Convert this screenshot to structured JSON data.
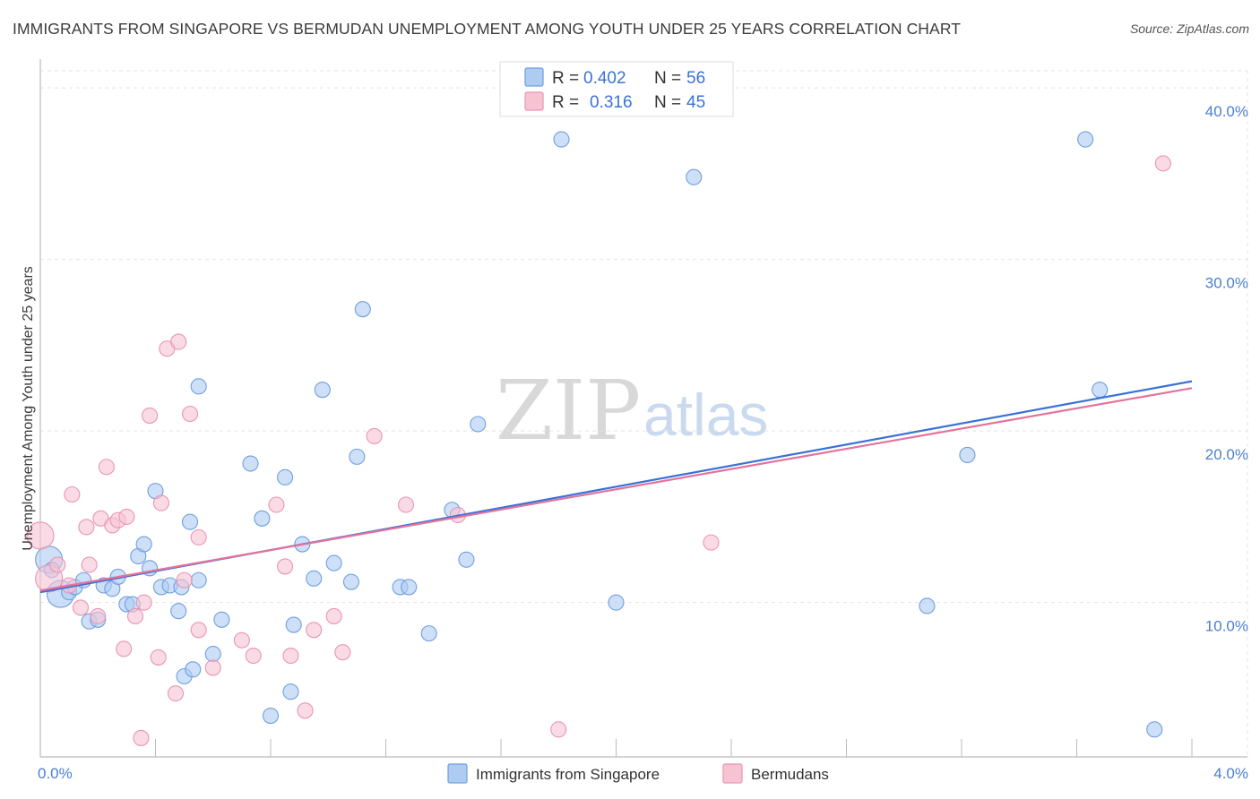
{
  "title": "IMMIGRANTS FROM SINGAPORE VS BERMUDAN UNEMPLOYMENT AMONG YOUTH UNDER 25 YEARS CORRELATION CHART",
  "source": "Source: ZipAtlas.com",
  "watermark": {
    "part1": "ZIP",
    "part2": "atlas"
  },
  "colors": {
    "blue_fill": "#aecbf2",
    "blue_stroke": "#6f9fe0",
    "blue_line": "#3a72d6",
    "pink_fill": "#f7c3d3",
    "pink_stroke": "#e995b3",
    "pink_line": "#e3739c",
    "grid": "#e3e3e3",
    "axis_text": "#4a7fd0"
  },
  "legend": {
    "rows": [
      {
        "r_label": "R =",
        "r_value": "0.402",
        "n_label": "N =",
        "n_value": "56"
      },
      {
        "r_label": "R =",
        "r_value": "0.316",
        "n_label": "N =",
        "n_value": "45"
      }
    ]
  },
  "chart_data": {
    "type": "scatter",
    "title": "IMMIGRANTS FROM SINGAPORE VS BERMUDAN UNEMPLOYMENT AMONG YOUTH UNDER 25 YEARS CORRELATION CHART",
    "xlabel": "",
    "ylabel": "Unemployment Among Youth under 25 years",
    "xlim": [
      0,
      4.0
    ],
    "ylim": [
      1.0,
      41.0
    ],
    "x_tick_labels": {
      "min": "0.0%",
      "max": "4.0%"
    },
    "y_ticks": [
      10,
      20,
      30,
      40
    ],
    "y_tick_labels": [
      "10.0%",
      "20.0%",
      "30.0%",
      "40.0%"
    ],
    "grid": true,
    "series": [
      {
        "name": "Immigrants from Singapore",
        "color": "blue",
        "trend": {
          "x": [
            0.0,
            4.0
          ],
          "y": [
            10.6,
            22.9
          ]
        },
        "points": [
          {
            "x": 0.03,
            "y": 12.5,
            "big": true
          },
          {
            "x": 0.04,
            "y": 11.9
          },
          {
            "x": 0.07,
            "y": 10.5,
            "big": true
          },
          {
            "x": 0.1,
            "y": 10.6
          },
          {
            "x": 0.12,
            "y": 10.9
          },
          {
            "x": 0.15,
            "y": 11.3
          },
          {
            "x": 0.17,
            "y": 8.9
          },
          {
            "x": 0.2,
            "y": 9.0
          },
          {
            "x": 0.22,
            "y": 11.0
          },
          {
            "x": 0.25,
            "y": 10.8
          },
          {
            "x": 0.27,
            "y": 11.5
          },
          {
            "x": 0.3,
            "y": 9.9
          },
          {
            "x": 0.32,
            "y": 9.9
          },
          {
            "x": 0.34,
            "y": 12.7
          },
          {
            "x": 0.36,
            "y": 13.4
          },
          {
            "x": 0.38,
            "y": 12.0
          },
          {
            "x": 0.4,
            "y": 16.5
          },
          {
            "x": 0.42,
            "y": 10.9
          },
          {
            "x": 0.45,
            "y": 11.0
          },
          {
            "x": 0.48,
            "y": 9.5
          },
          {
            "x": 0.49,
            "y": 10.9
          },
          {
            "x": 0.52,
            "y": 14.7
          },
          {
            "x": 0.5,
            "y": 5.7
          },
          {
            "x": 0.53,
            "y": 6.1
          },
          {
            "x": 0.55,
            "y": 11.3
          },
          {
            "x": 0.6,
            "y": 7.0
          },
          {
            "x": 0.63,
            "y": 9.0
          },
          {
            "x": 0.55,
            "y": 22.6
          },
          {
            "x": 0.73,
            "y": 18.1
          },
          {
            "x": 0.77,
            "y": 14.9
          },
          {
            "x": 0.8,
            "y": 3.4
          },
          {
            "x": 0.85,
            "y": 17.3
          },
          {
            "x": 0.87,
            "y": 4.8
          },
          {
            "x": 0.88,
            "y": 8.7
          },
          {
            "x": 0.91,
            "y": 13.4
          },
          {
            "x": 0.95,
            "y": 11.4
          },
          {
            "x": 0.98,
            "y": 22.4
          },
          {
            "x": 1.02,
            "y": 12.3
          },
          {
            "x": 1.08,
            "y": 11.2
          },
          {
            "x": 1.1,
            "y": 18.5
          },
          {
            "x": 1.12,
            "y": 27.1
          },
          {
            "x": 1.25,
            "y": 10.9
          },
          {
            "x": 1.28,
            "y": 10.9
          },
          {
            "x": 1.35,
            "y": 8.2
          },
          {
            "x": 1.43,
            "y": 15.4
          },
          {
            "x": 1.48,
            "y": 12.5
          },
          {
            "x": 1.52,
            "y": 20.4
          },
          {
            "x": 1.81,
            "y": 37.0
          },
          {
            "x": 2.0,
            "y": 10.0
          },
          {
            "x": 2.27,
            "y": 34.8
          },
          {
            "x": 3.08,
            "y": 9.8
          },
          {
            "x": 3.22,
            "y": 18.6
          },
          {
            "x": 3.63,
            "y": 37.0
          },
          {
            "x": 3.68,
            "y": 22.4
          },
          {
            "x": 3.87,
            "y": 2.6
          }
        ]
      },
      {
        "name": "Bermudans",
        "color": "pink",
        "trend": {
          "x": [
            0.0,
            4.0
          ],
          "y": [
            10.7,
            22.5
          ]
        },
        "points": [
          {
            "x": 0.0,
            "y": 13.9,
            "big": true
          },
          {
            "x": 0.03,
            "y": 11.4,
            "big": true
          },
          {
            "x": 0.06,
            "y": 12.2
          },
          {
            "x": 0.1,
            "y": 11.0
          },
          {
            "x": 0.11,
            "y": 16.3
          },
          {
            "x": 0.14,
            "y": 9.7
          },
          {
            "x": 0.16,
            "y": 14.4
          },
          {
            "x": 0.17,
            "y": 12.2
          },
          {
            "x": 0.2,
            "y": 9.2
          },
          {
            "x": 0.21,
            "y": 14.9
          },
          {
            "x": 0.23,
            "y": 17.9
          },
          {
            "x": 0.25,
            "y": 14.5
          },
          {
            "x": 0.27,
            "y": 14.8
          },
          {
            "x": 0.29,
            "y": 7.3
          },
          {
            "x": 0.3,
            "y": 15.0
          },
          {
            "x": 0.33,
            "y": 9.2
          },
          {
            "x": 0.35,
            "y": 2.1
          },
          {
            "x": 0.36,
            "y": 10.0
          },
          {
            "x": 0.38,
            "y": 20.9
          },
          {
            "x": 0.41,
            "y": 6.8
          },
          {
            "x": 0.42,
            "y": 15.8
          },
          {
            "x": 0.44,
            "y": 24.8
          },
          {
            "x": 0.47,
            "y": 4.7
          },
          {
            "x": 0.48,
            "y": 25.2
          },
          {
            "x": 0.5,
            "y": 11.3
          },
          {
            "x": 0.52,
            "y": 21.0
          },
          {
            "x": 0.55,
            "y": 13.8
          },
          {
            "x": 0.55,
            "y": 8.4
          },
          {
            "x": 0.6,
            "y": 6.2
          },
          {
            "x": 0.7,
            "y": 7.8
          },
          {
            "x": 0.74,
            "y": 6.9
          },
          {
            "x": 0.82,
            "y": 15.7
          },
          {
            "x": 0.85,
            "y": 12.1
          },
          {
            "x": 0.87,
            "y": 6.9
          },
          {
            "x": 0.92,
            "y": 3.7
          },
          {
            "x": 0.95,
            "y": 8.4
          },
          {
            "x": 1.02,
            "y": 9.2
          },
          {
            "x": 1.05,
            "y": 7.1
          },
          {
            "x": 1.16,
            "y": 19.7
          },
          {
            "x": 1.27,
            "y": 15.7
          },
          {
            "x": 1.45,
            "y": 15.1
          },
          {
            "x": 1.8,
            "y": 2.6
          },
          {
            "x": 2.33,
            "y": 13.5
          },
          {
            "x": 3.9,
            "y": 35.6
          }
        ]
      }
    ]
  },
  "bottom_legend": [
    {
      "label": "Immigrants from Singapore"
    },
    {
      "label": "Bermudans"
    }
  ]
}
